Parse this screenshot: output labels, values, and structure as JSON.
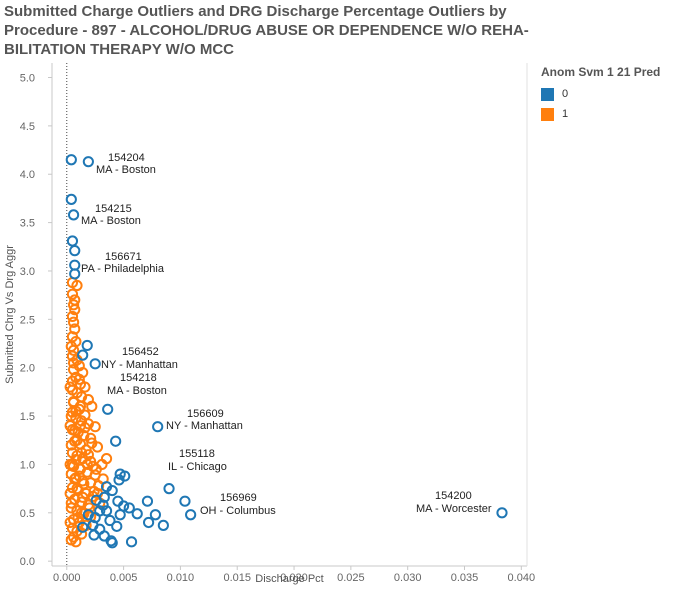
{
  "chart_data": {
    "type": "scatter",
    "title": "Submitted Charge Outliers and DRG Discharge Percentage Outliers by Procedure - 897 - ALCOHOL/DRUG ABUSE OR DEPENDENCE W/O REHA- BILITATION THERAPY W/O MCC",
    "xlabel": "Discharge Pct",
    "ylabel": "Submitted Chrg Vs Drg Aggr",
    "xlim": [
      -0.0013,
      0.0405
    ],
    "ylim": [
      -0.05,
      5.15
    ],
    "x_ticks": [
      "0.000",
      "0.005",
      "0.010",
      "0.015",
      "0.020",
      "0.025",
      "0.030",
      "0.035",
      "0.040"
    ],
    "y_ticks": [
      "0.0",
      "0.5",
      "1.0",
      "1.5",
      "2.0",
      "2.5",
      "3.0",
      "3.5",
      "4.0",
      "4.5",
      "5.0"
    ],
    "grid": false,
    "legend": {
      "title": "Anom Svm 1 21 Pred",
      "placement": "top-right",
      "items": [
        {
          "label": "0",
          "color": "#1f77b4"
        },
        {
          "label": "1",
          "color": "#ff7f0e"
        }
      ]
    },
    "series": [
      {
        "name": "0",
        "color": "#1f77b4",
        "points": [
          [
            0.0004,
            4.15
          ],
          [
            0.0019,
            4.13
          ],
          [
            0.0004,
            3.74
          ],
          [
            0.0006,
            3.58
          ],
          [
            0.0005,
            3.31
          ],
          [
            0.0007,
            3.21
          ],
          [
            0.0007,
            3.06
          ],
          [
            0.0007,
            2.97
          ],
          [
            0.0018,
            2.23
          ],
          [
            0.0014,
            2.13
          ],
          [
            0.0025,
            2.04
          ],
          [
            0.0036,
            1.57
          ],
          [
            0.0043,
            1.24
          ],
          [
            0.008,
            1.39
          ],
          [
            0.009,
            0.75
          ],
          [
            0.0104,
            0.62
          ],
          [
            0.0109,
            0.48
          ],
          [
            0.0383,
            0.5
          ],
          [
            0.0035,
            0.77
          ],
          [
            0.004,
            0.73
          ],
          [
            0.0047,
            0.9
          ],
          [
            0.0051,
            0.88
          ],
          [
            0.0046,
            0.84
          ],
          [
            0.0033,
            0.66
          ],
          [
            0.0045,
            0.62
          ],
          [
            0.0055,
            0.55
          ],
          [
            0.0047,
            0.48
          ],
          [
            0.0062,
            0.49
          ],
          [
            0.0071,
            0.62
          ],
          [
            0.0078,
            0.48
          ],
          [
            0.0072,
            0.4
          ],
          [
            0.0085,
            0.37
          ],
          [
            0.0026,
            0.63
          ],
          [
            0.0032,
            0.58
          ],
          [
            0.0035,
            0.52
          ],
          [
            0.0025,
            0.45
          ],
          [
            0.0029,
            0.33
          ],
          [
            0.0038,
            0.42
          ],
          [
            0.0044,
            0.36
          ],
          [
            0.0024,
            0.27
          ],
          [
            0.0039,
            0.21
          ],
          [
            0.0033,
            0.26
          ],
          [
            0.0057,
            0.2
          ],
          [
            0.0014,
            0.35
          ],
          [
            0.0019,
            0.48
          ],
          [
            0.0023,
            0.37
          ],
          [
            0.004,
            0.19
          ],
          [
            0.005,
            0.57
          ],
          [
            0.0029,
            0.52
          ]
        ]
      },
      {
        "name": "1",
        "color": "#ff7f0e",
        "points": [
          [
            0.0005,
            2.88
          ],
          [
            0.0009,
            2.85
          ],
          [
            0.0005,
            2.76
          ],
          [
            0.0007,
            2.7
          ],
          [
            0.0006,
            2.65
          ],
          [
            0.0007,
            2.6
          ],
          [
            0.0005,
            2.53
          ],
          [
            0.0006,
            2.47
          ],
          [
            0.0007,
            2.4
          ],
          [
            0.0005,
            2.32
          ],
          [
            0.0008,
            2.27
          ],
          [
            0.0004,
            2.22
          ],
          [
            0.0006,
            2.18
          ],
          [
            0.0005,
            2.12
          ],
          [
            0.0009,
            2.08
          ],
          [
            0.0011,
            2.02
          ],
          [
            0.0006,
            1.98
          ],
          [
            0.0014,
            1.95
          ],
          [
            0.0008,
            1.9
          ],
          [
            0.0005,
            1.86
          ],
          [
            0.0012,
            1.83
          ],
          [
            0.0016,
            1.8
          ],
          [
            0.0005,
            1.77
          ],
          [
            0.0009,
            1.74
          ],
          [
            0.0013,
            1.7
          ],
          [
            0.0019,
            1.67
          ],
          [
            0.0006,
            1.64
          ],
          [
            0.0022,
            1.6
          ],
          [
            0.0011,
            1.57
          ],
          [
            0.0005,
            1.54
          ],
          [
            0.0016,
            1.51
          ],
          [
            0.0008,
            1.48
          ],
          [
            0.0013,
            1.45
          ],
          [
            0.0019,
            1.42
          ],
          [
            0.0025,
            1.39
          ],
          [
            0.0005,
            1.36
          ],
          [
            0.001,
            1.33
          ],
          [
            0.0015,
            1.3
          ],
          [
            0.0021,
            1.27
          ],
          [
            0.0007,
            1.24
          ],
          [
            0.0012,
            1.21
          ],
          [
            0.0027,
            1.18
          ],
          [
            0.0017,
            1.15
          ],
          [
            0.0005,
            1.12
          ],
          [
            0.0009,
            1.09
          ],
          [
            0.0014,
            1.06
          ],
          [
            0.0021,
            1.03
          ],
          [
            0.0035,
            1.06
          ],
          [
            0.0031,
            1.0
          ],
          [
            0.0006,
            0.98
          ],
          [
            0.0012,
            0.95
          ],
          [
            0.0018,
            0.92
          ],
          [
            0.0025,
            0.89
          ],
          [
            0.0008,
            0.86
          ],
          [
            0.0014,
            0.83
          ],
          [
            0.0021,
            0.81
          ],
          [
            0.0028,
            0.78
          ],
          [
            0.0005,
            0.76
          ],
          [
            0.001,
            0.73
          ],
          [
            0.0017,
            0.7
          ],
          [
            0.0023,
            0.67
          ],
          [
            0.0007,
            0.64
          ],
          [
            0.0013,
            0.61
          ],
          [
            0.0019,
            0.58
          ],
          [
            0.0004,
            0.55
          ],
          [
            0.0009,
            0.52
          ],
          [
            0.0015,
            0.49
          ],
          [
            0.0021,
            0.46
          ],
          [
            0.0006,
            0.43
          ],
          [
            0.0011,
            0.4
          ],
          [
            0.0017,
            0.37
          ],
          [
            0.0005,
            0.34
          ],
          [
            0.0009,
            0.31
          ],
          [
            0.0013,
            0.28
          ],
          [
            0.0006,
            0.25
          ],
          [
            0.0004,
            0.22
          ],
          [
            0.0008,
            0.2
          ],
          [
            0.0004,
            1.5
          ],
          [
            0.0004,
            1.2
          ],
          [
            0.0004,
            0.9
          ],
          [
            0.0004,
            0.6
          ],
          [
            0.0006,
            1.65
          ],
          [
            0.0007,
            1.35
          ],
          [
            0.0008,
            1.05
          ],
          [
            0.0009,
            0.75
          ],
          [
            0.001,
            0.45
          ],
          [
            0.0011,
            1.88
          ],
          [
            0.0012,
            1.6
          ],
          [
            0.0013,
            1.12
          ],
          [
            0.0014,
            0.66
          ],
          [
            0.0016,
            1.38
          ],
          [
            0.0018,
            1.0
          ],
          [
            0.002,
            0.55
          ],
          [
            0.0022,
            1.22
          ],
          [
            0.0024,
            0.72
          ],
          [
            0.0026,
            0.95
          ],
          [
            0.0029,
            0.6
          ],
          [
            0.0032,
            0.85
          ],
          [
            0.0003,
            1.8
          ],
          [
            0.0003,
            1.4
          ],
          [
            0.0003,
            1.0
          ],
          [
            0.0003,
            0.7
          ],
          [
            0.0003,
            0.4
          ],
          [
            0.0006,
            2.05
          ],
          [
            0.0008,
            1.55
          ],
          [
            0.0009,
            1.25
          ],
          [
            0.0011,
            0.88
          ],
          [
            0.0013,
            0.5
          ],
          [
            0.0015,
            0.8
          ],
          [
            0.0019,
            1.1
          ],
          [
            0.0023,
            0.98
          ],
          [
            0.0027,
            0.7
          ],
          [
            0.0005,
            1.0
          ],
          [
            0.0007,
            0.85
          ],
          [
            0.0012,
            1.4
          ]
        ]
      }
    ],
    "annotations": [
      {
        "id": "154204",
        "city": "MA - Boston"
      },
      {
        "id": "154215",
        "city": "MA - Boston"
      },
      {
        "id": "156671",
        "city": "PA - Philadelphia"
      },
      {
        "id": "156452",
        "city": "NY - Manhattan"
      },
      {
        "id": "154218",
        "city": "MA - Boston"
      },
      {
        "id": "156609",
        "city": "NY - Manhattan"
      },
      {
        "id": "155118",
        "city": "IL - Chicago"
      },
      {
        "id": "156969",
        "city": "OH - Columbus"
      },
      {
        "id": "154200",
        "city": "MA - Worcester"
      }
    ]
  }
}
